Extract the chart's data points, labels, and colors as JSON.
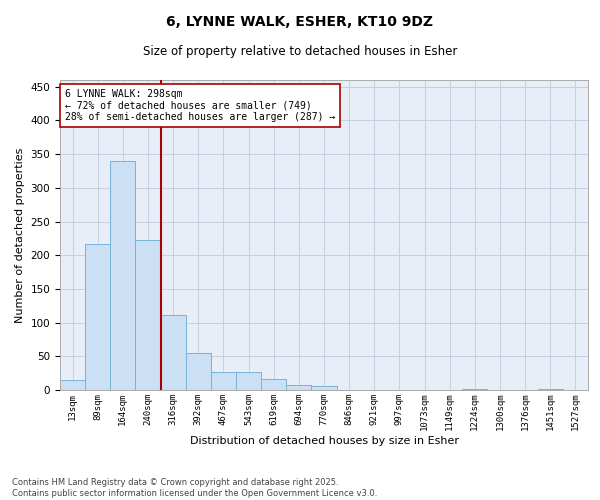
{
  "title": "6, LYNNE WALK, ESHER, KT10 9DZ",
  "subtitle": "Size of property relative to detached houses in Esher",
  "xlabel": "Distribution of detached houses by size in Esher",
  "ylabel": "Number of detached properties",
  "bar_color": "#cce0f5",
  "bar_edge_color": "#7ab0d8",
  "grid_color": "#c8d0e0",
  "background_color": "#e8eef8",
  "vline_color": "#aa0000",
  "vline_index": 3.5,
  "annotation_text": "6 LYNNE WALK: 298sqm\n← 72% of detached houses are smaller (749)\n28% of semi-detached houses are larger (287) →",
  "annotation_box_facecolor": "#ffffff",
  "annotation_box_edgecolor": "#aa0000",
  "categories": [
    "13sqm",
    "89sqm",
    "164sqm",
    "240sqm",
    "316sqm",
    "392sqm",
    "467sqm",
    "543sqm",
    "619sqm",
    "694sqm",
    "770sqm",
    "846sqm",
    "921sqm",
    "997sqm",
    "1073sqm",
    "1149sqm",
    "1224sqm",
    "1300sqm",
    "1376sqm",
    "1451sqm",
    "1527sqm"
  ],
  "values": [
    15,
    216,
    340,
    222,
    112,
    55,
    26,
    26,
    17,
    8,
    6,
    0,
    0,
    0,
    0,
    0,
    2,
    0,
    0,
    2,
    0
  ],
  "ylim": [
    0,
    460
  ],
  "yticks": [
    0,
    50,
    100,
    150,
    200,
    250,
    300,
    350,
    400,
    450
  ],
  "footer_line1": "Contains HM Land Registry data © Crown copyright and database right 2025.",
  "footer_line2": "Contains public sector information licensed under the Open Government Licence v3.0."
}
